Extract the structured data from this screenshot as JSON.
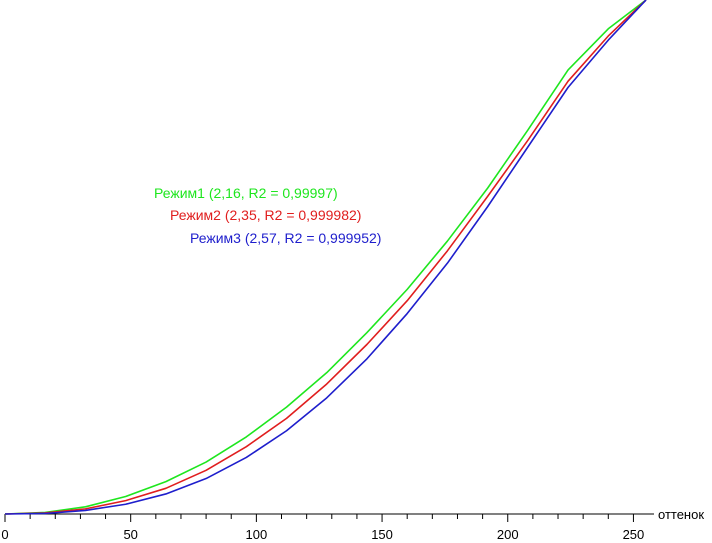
{
  "chart_data": {
    "type": "line",
    "title": "",
    "xlabel": "оттенок",
    "ylabel": "",
    "xlim": [
      0,
      255
    ],
    "ylim": [
      0,
      1
    ],
    "grid": false,
    "legend_placement": "center-left",
    "x_ticks": [
      0,
      50,
      100,
      150,
      200,
      250
    ],
    "x_tick_labels": [
      "0",
      "50",
      "100",
      "150",
      "200",
      "250"
    ],
    "series": [
      {
        "name": "Режим1 (2,16, R2 = 0,99997)",
        "color": "#1ee61e",
        "x": [
          0,
          16,
          32,
          48,
          64,
          80,
          96,
          112,
          128,
          144,
          160,
          176,
          192,
          208,
          224,
          240,
          255
        ],
        "y": [
          0,
          0.003,
          0.014,
          0.034,
          0.063,
          0.101,
          0.15,
          0.208,
          0.275,
          0.353,
          0.437,
          0.531,
          0.634,
          0.747,
          0.864,
          0.944,
          1.0
        ]
      },
      {
        "name": "Режим2 (2,35, R2 = 0,999982)",
        "color": "#e01e1e",
        "x": [
          0,
          16,
          32,
          48,
          64,
          80,
          96,
          112,
          128,
          144,
          160,
          176,
          192,
          208,
          224,
          240,
          255
        ],
        "y": [
          0,
          0.002,
          0.01,
          0.026,
          0.05,
          0.085,
          0.131,
          0.186,
          0.253,
          0.33,
          0.415,
          0.512,
          0.618,
          0.727,
          0.842,
          0.93,
          1.0
        ]
      },
      {
        "name": "Режим3 (2,57, R2 = 0,999952)",
        "color": "#1e1ecc",
        "x": [
          0,
          16,
          32,
          48,
          64,
          80,
          96,
          112,
          128,
          144,
          160,
          176,
          192,
          208,
          224,
          240,
          255
        ],
        "y": [
          0,
          0.001,
          0.007,
          0.019,
          0.039,
          0.069,
          0.11,
          0.162,
          0.226,
          0.302,
          0.39,
          0.488,
          0.598,
          0.714,
          0.83,
          0.922,
          1.0
        ]
      }
    ]
  }
}
